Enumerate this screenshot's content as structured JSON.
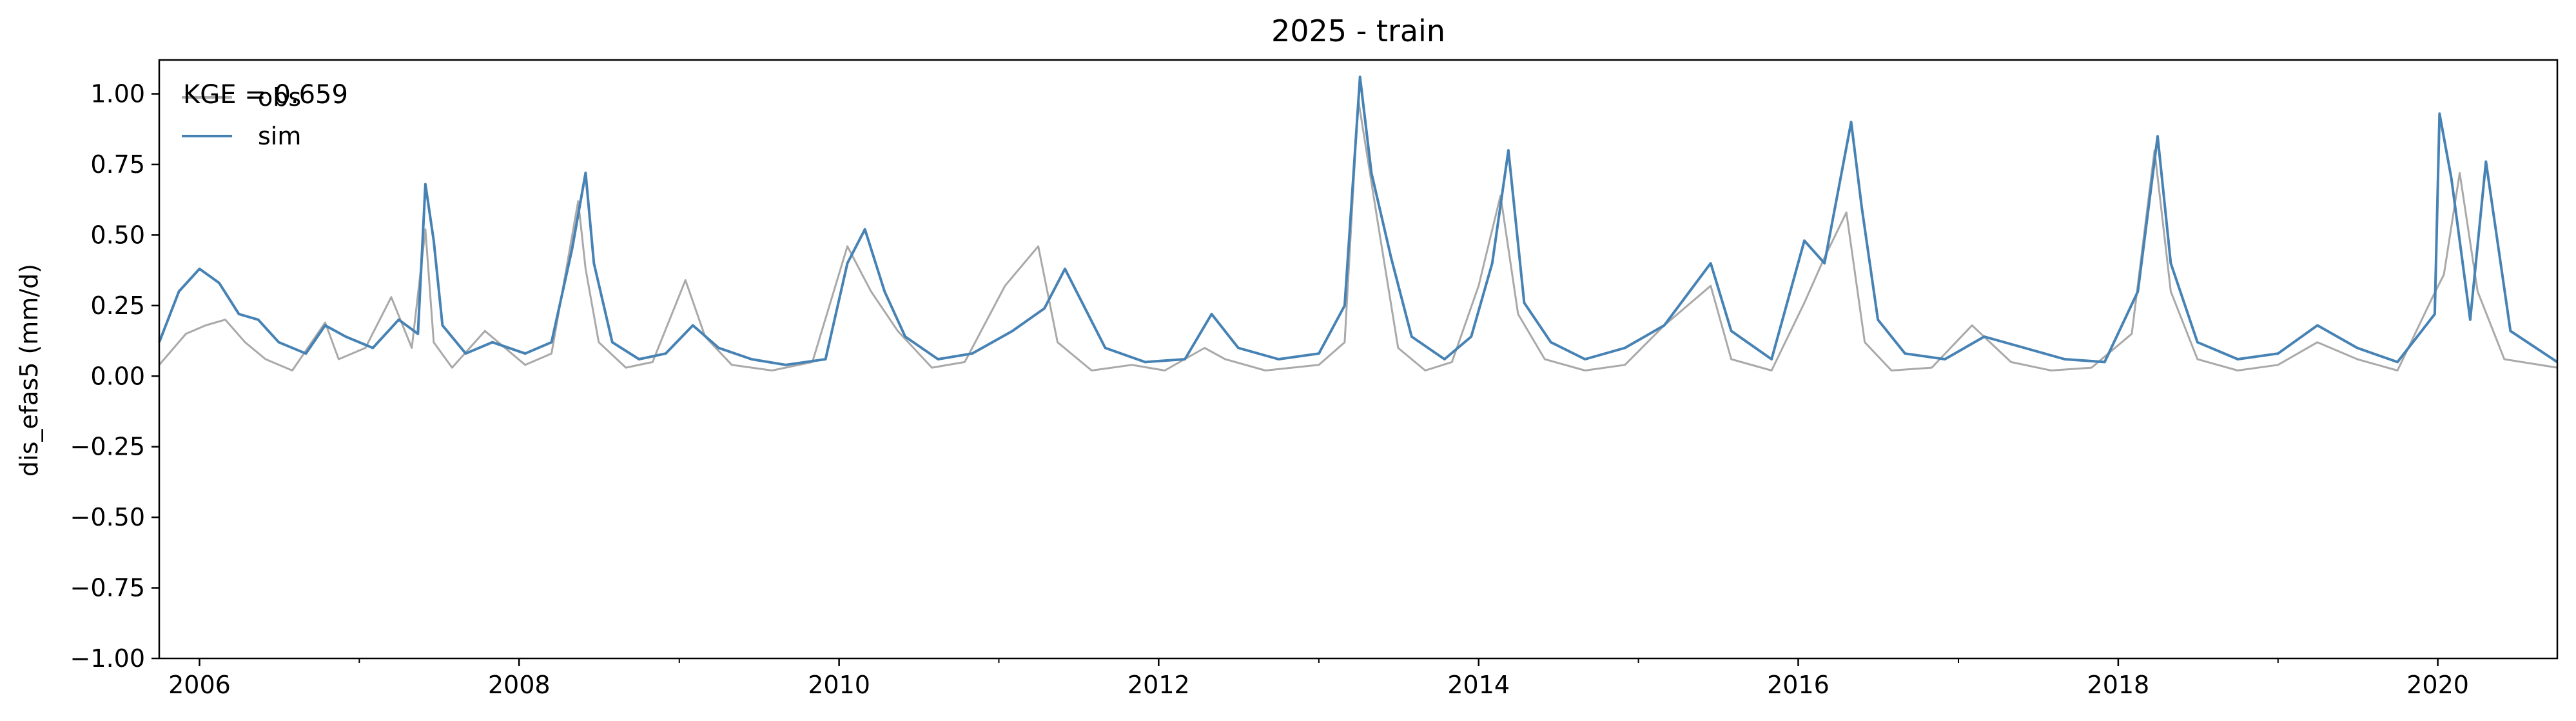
{
  "chart_data": {
    "type": "line",
    "title": "2025 - train",
    "xlabel": "",
    "ylabel": "dis_efas5 (mm/d)",
    "xlim": [
      "2005-10-01",
      "2020-09-30"
    ],
    "ylim": [
      -1.0,
      1.12
    ],
    "grid": false,
    "legend": {
      "placement": "top-left"
    },
    "x_ticks": [
      "2006",
      "2008",
      "2010",
      "2012",
      "2014",
      "2016",
      "2018",
      "2020"
    ],
    "y_ticks": [
      "1.00",
      "0.75",
      "0.50",
      "0.25",
      "0.00",
      "−0.25",
      "−0.50",
      "−0.75",
      "−1.00"
    ],
    "annotation": "KGE = 0.659",
    "colors": {
      "obs": "#a9a9a9",
      "sim": "#4682b4"
    },
    "series": [
      {
        "name": "obs",
        "x": [
          "2005-10-01",
          "2005-12-01",
          "2006-01-15",
          "2006-03-01",
          "2006-04-15",
          "2006-06-01",
          "2006-08-01",
          "2006-10-15",
          "2006-11-15",
          "2007-01-15",
          "2007-03-15",
          "2007-05-01",
          "2007-06-01",
          "2007-06-20",
          "2007-08-01",
          "2007-10-15",
          "2008-01-15",
          "2008-03-15",
          "2008-05-15",
          "2008-06-01",
          "2008-07-01",
          "2008-09-01",
          "2008-11-01",
          "2009-01-15",
          "2009-03-01",
          "2009-05-01",
          "2009-08-01",
          "2009-11-01",
          "2010-01-20",
          "2010-03-15",
          "2010-05-15",
          "2010-08-01",
          "2010-10-15",
          "2011-01-15",
          "2011-04-01",
          "2011-05-15",
          "2011-08-01",
          "2011-11-01",
          "2012-01-15",
          "2012-04-15",
          "2012-06-01",
          "2012-09-01",
          "2013-01-01",
          "2013-03-01",
          "2013-04-01",
          "2013-05-15",
          "2013-07-01",
          "2013-09-01",
          "2013-11-01",
          "2014-01-01",
          "2014-02-20",
          "2014-04-01",
          "2014-06-01",
          "2014-09-01",
          "2014-12-01",
          "2015-03-01",
          "2015-06-15",
          "2015-08-01",
          "2015-11-01",
          "2016-01-15",
          "2016-03-01",
          "2016-04-20",
          "2016-06-01",
          "2016-08-01",
          "2016-11-01",
          "2017-02-01",
          "2017-05-01",
          "2017-08-01",
          "2017-11-01",
          "2018-02-01",
          "2018-03-25",
          "2018-05-01",
          "2018-07-01",
          "2018-10-01",
          "2019-01-01",
          "2019-04-01",
          "2019-07-01",
          "2019-10-01",
          "2019-12-20",
          "2020-01-15",
          "2020-02-20",
          "2020-04-01",
          "2020-06-01",
          "2020-09-30"
        ],
        "values": [
          0.04,
          0.15,
          0.18,
          0.2,
          0.12,
          0.06,
          0.02,
          0.19,
          0.06,
          0.1,
          0.28,
          0.1,
          0.52,
          0.12,
          0.03,
          0.16,
          0.04,
          0.08,
          0.62,
          0.38,
          0.12,
          0.03,
          0.05,
          0.34,
          0.14,
          0.04,
          0.02,
          0.05,
          0.46,
          0.3,
          0.16,
          0.03,
          0.05,
          0.32,
          0.46,
          0.12,
          0.02,
          0.04,
          0.02,
          0.1,
          0.06,
          0.02,
          0.04,
          0.12,
          0.98,
          0.55,
          0.1,
          0.02,
          0.05,
          0.32,
          0.64,
          0.22,
          0.06,
          0.02,
          0.04,
          0.18,
          0.32,
          0.06,
          0.02,
          0.26,
          0.42,
          0.58,
          0.12,
          0.02,
          0.03,
          0.18,
          0.05,
          0.02,
          0.03,
          0.15,
          0.8,
          0.3,
          0.06,
          0.02,
          0.04,
          0.12,
          0.06,
          0.02,
          0.28,
          0.36,
          0.72,
          0.3,
          0.06,
          0.03
        ]
      },
      {
        "name": "sim",
        "x": [
          "2005-10-01",
          "2005-11-15",
          "2006-01-01",
          "2006-02-15",
          "2006-04-01",
          "2006-05-15",
          "2006-07-01",
          "2006-09-01",
          "2006-10-15",
          "2006-12-01",
          "2007-02-01",
          "2007-04-01",
          "2007-05-15",
          "2007-06-01",
          "2007-06-20",
          "2007-07-10",
          "2007-09-01",
          "2007-11-01",
          "2008-01-15",
          "2008-03-15",
          "2008-05-01",
          "2008-06-01",
          "2008-06-20",
          "2008-08-01",
          "2008-10-01",
          "2008-12-01",
          "2009-02-01",
          "2009-04-01",
          "2009-06-15",
          "2009-09-01",
          "2009-12-01",
          "2010-01-20",
          "2010-03-01",
          "2010-04-15",
          "2010-06-01",
          "2010-08-15",
          "2010-11-01",
          "2011-02-01",
          "2011-04-15",
          "2011-06-01",
          "2011-09-01",
          "2011-12-01",
          "2012-03-01",
          "2012-05-01",
          "2012-07-01",
          "2012-10-01",
          "2013-01-01",
          "2013-03-01",
          "2013-04-05",
          "2013-05-01",
          "2013-06-15",
          "2013-08-01",
          "2013-10-15",
          "2013-12-15",
          "2014-02-01",
          "2014-03-10",
          "2014-04-15",
          "2014-06-15",
          "2014-09-01",
          "2014-12-01",
          "2015-03-01",
          "2015-06-15",
          "2015-08-01",
          "2015-11-01",
          "2016-01-15",
          "2016-03-01",
          "2016-05-01",
          "2016-05-25",
          "2016-07-01",
          "2016-09-01",
          "2016-12-01",
          "2017-03-01",
          "2017-06-01",
          "2017-09-01",
          "2017-12-01",
          "2018-02-15",
          "2018-04-01",
          "2018-05-01",
          "2018-07-01",
          "2018-10-01",
          "2019-01-01",
          "2019-04-01",
          "2019-07-01",
          "2019-10-01",
          "2019-12-25",
          "2020-01-05",
          "2020-02-01",
          "2020-03-15",
          "2020-04-20",
          "2020-06-15",
          "2020-09-30"
        ],
        "values": [
          0.12,
          0.3,
          0.38,
          0.33,
          0.22,
          0.2,
          0.12,
          0.08,
          0.18,
          0.14,
          0.1,
          0.2,
          0.15,
          0.68,
          0.48,
          0.18,
          0.08,
          0.12,
          0.08,
          0.12,
          0.45,
          0.72,
          0.4,
          0.12,
          0.06,
          0.08,
          0.18,
          0.1,
          0.06,
          0.04,
          0.06,
          0.4,
          0.52,
          0.3,
          0.14,
          0.06,
          0.08,
          0.16,
          0.24,
          0.38,
          0.1,
          0.05,
          0.06,
          0.22,
          0.1,
          0.06,
          0.08,
          0.25,
          1.06,
          0.72,
          0.42,
          0.14,
          0.06,
          0.14,
          0.4,
          0.8,
          0.26,
          0.12,
          0.06,
          0.1,
          0.18,
          0.4,
          0.16,
          0.06,
          0.48,
          0.4,
          0.9,
          0.6,
          0.2,
          0.08,
          0.06,
          0.14,
          0.1,
          0.06,
          0.05,
          0.3,
          0.85,
          0.4,
          0.12,
          0.06,
          0.08,
          0.18,
          0.1,
          0.05,
          0.22,
          0.93,
          0.7,
          0.2,
          0.76,
          0.16,
          0.05
        ]
      }
    ]
  }
}
